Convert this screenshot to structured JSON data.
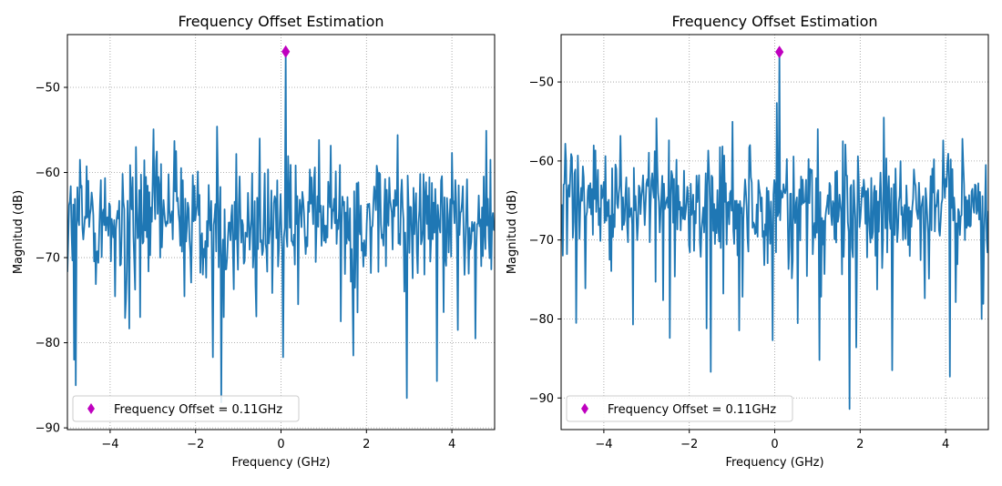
{
  "chart_data": [
    {
      "type": "line",
      "title": "Frequency Offset Estimation",
      "xlabel": "Frequency (GHz)",
      "ylabel": "Magnitud (dB)",
      "xlim": [
        -5,
        5
      ],
      "ylim": [
        -90.2,
        -43.8
      ],
      "xticks": [
        -4,
        -2,
        0,
        2,
        4
      ],
      "yticks": [
        -90,
        -80,
        -70,
        -60,
        -50
      ],
      "grid": true,
      "legend_position": "lower-left",
      "legend": "Frequency Offset = 0.11GHz",
      "series_color": "#1f77b4",
      "marker_color": "#bf00bf",
      "peak": {
        "x": 0.11,
        "y": -45.8
      },
      "noise": {
        "seed": 12345,
        "mean": -65.5,
        "spread": 4.2,
        "spikes": [
          [
            -4.8,
            -85
          ],
          [
            -4.85,
            -82
          ],
          [
            -1.4,
            -87
          ],
          [
            -1.6,
            -81.7
          ],
          [
            0.05,
            -81.7
          ],
          [
            2.95,
            -86.5
          ],
          [
            3.65,
            -84.5
          ],
          [
            4.55,
            -79.5
          ],
          [
            -3.3,
            -77
          ],
          [
            1.7,
            -81.5
          ],
          [
            -1.5,
            -54.6
          ],
          [
            -0.5,
            -56
          ],
          [
            4.0,
            -57.7
          ],
          [
            -2.5,
            -56.3
          ],
          [
            -3.4,
            -57
          ],
          [
            -4.7,
            -58.5
          ],
          [
            4.9,
            -58.5
          ]
        ]
      }
    },
    {
      "type": "line",
      "title": "Frequency Offset Estimation",
      "xlabel": "Frequency (GHz)",
      "ylabel": "Magnitud (dB)",
      "xlim": [
        -5,
        5
      ],
      "ylim": [
        -94,
        -44
      ],
      "xticks": [
        -4,
        -2,
        0,
        2,
        4
      ],
      "yticks": [
        -90,
        -80,
        -70,
        -60,
        -50
      ],
      "grid": true,
      "legend_position": "lower-left",
      "legend": "Frequency Offset = 0.11GHz",
      "series_color": "#1f77b4",
      "marker_color": "#bf00bf",
      "peak": {
        "x": 0.11,
        "y": -46.2
      },
      "noise": {
        "seed": 98765,
        "mean": -65.5,
        "spread": 4.2,
        "spikes": [
          [
            -4.65,
            -80.5
          ],
          [
            -2.45,
            -82.4
          ],
          [
            -1.6,
            -81.2
          ],
          [
            -1.5,
            -86.7
          ],
          [
            -0.05,
            -82.7
          ],
          [
            1.05,
            -85.2
          ],
          [
            1.75,
            -91.4
          ],
          [
            1.9,
            -83.6
          ],
          [
            2.75,
            -86.5
          ],
          [
            4.1,
            -87.3
          ],
          [
            4.85,
            -80
          ],
          [
            2.55,
            -54.5
          ],
          [
            3.95,
            -57.4
          ],
          [
            4.4,
            -57.2
          ],
          [
            -4.95,
            -63
          ],
          [
            4.95,
            -60.5
          ],
          [
            1.6,
            -57.5
          ]
        ]
      }
    }
  ]
}
